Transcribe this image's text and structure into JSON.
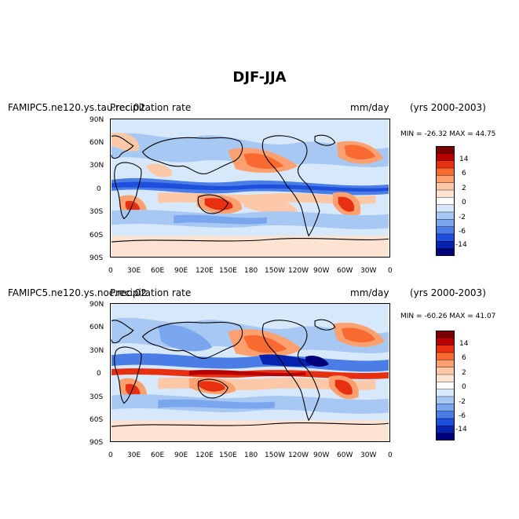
{
  "title": "DJF-JJA",
  "panels": [
    {
      "case_name": "FAMIPC5.ne120.ys.tau.rec.02",
      "variable": "Precipitation rate",
      "units": "mm/day",
      "years": "(yrs 2000-2003)",
      "min_max": "MIN = -26.32 MAX =  44.75"
    },
    {
      "case_name": "FAMIPC5.ne120.ys.noc.rec.02",
      "variable": "Precipitation rate",
      "units": "mm/day",
      "years": "(yrs 2000-2003)",
      "min_max": "MIN = -60.26 MAX =  41.07"
    }
  ],
  "lat_labels": [
    "90N",
    "60N",
    "30N",
    "0",
    "30S",
    "60S",
    "90S"
  ],
  "lon_labels": [
    "0",
    "30E",
    "60E",
    "90E",
    "120E",
    "150E",
    "180",
    "150W",
    "120W",
    "90W",
    "60W",
    "30W",
    "0"
  ],
  "colorbar": {
    "labels": [
      "14",
      "6",
      "2",
      "0",
      "-2",
      "-6",
      "-14"
    ],
    "colors": [
      "#7a0000",
      "#b80000",
      "#e83010",
      "#f86a30",
      "#fca070",
      "#fdc8a8",
      "#fde3d2",
      "#ffffff",
      "#d6e8fa",
      "#a8c8f4",
      "#7aa6ee",
      "#4a7ee6",
      "#1e4edc",
      "#0822b0",
      "#00007a"
    ]
  }
}
